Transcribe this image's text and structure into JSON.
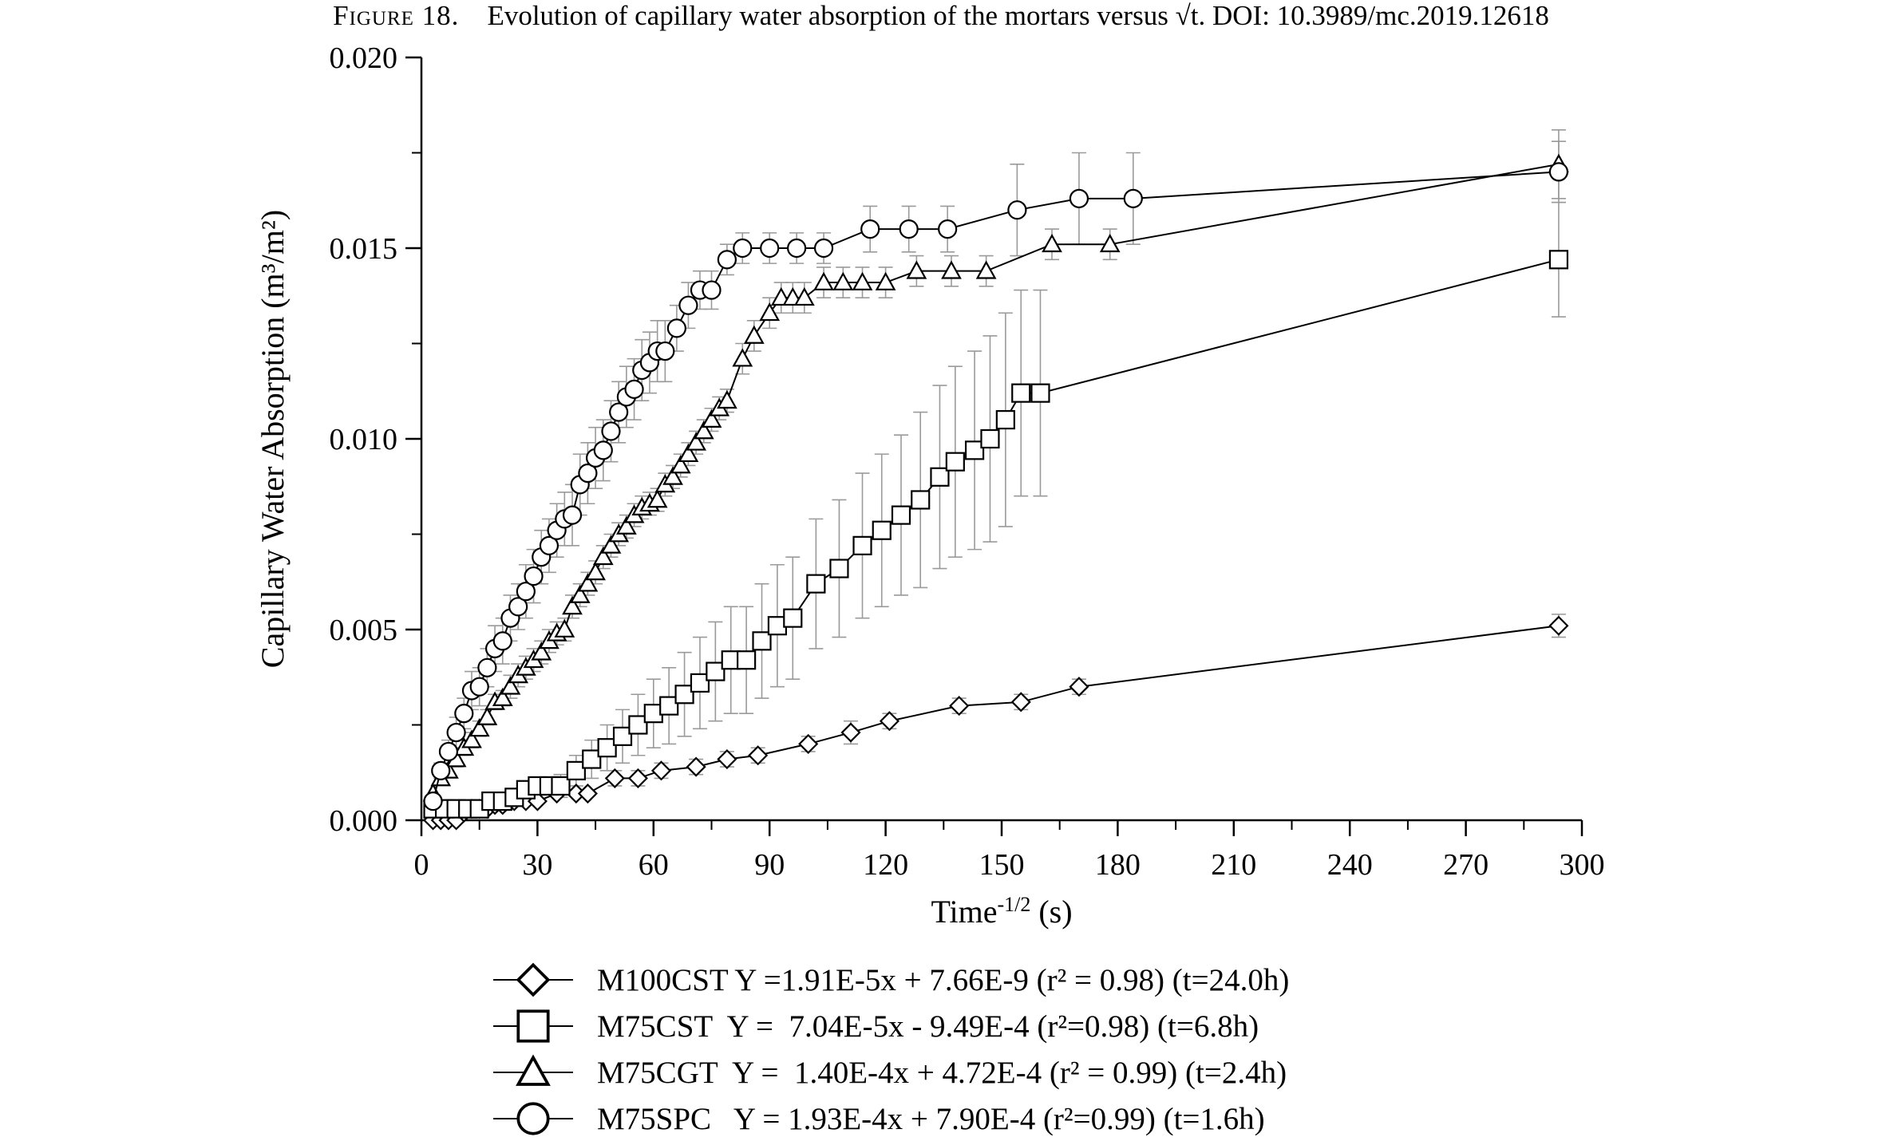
{
  "caption": {
    "label": "Figure 18.",
    "text": "Evolution of capillary water absorption of the mortars versus √t. DOI: 10.3989/mc.2019.12618"
  },
  "chart_data": {
    "type": "line",
    "xlabel": "Time",
    "xlabel_sup": "-1/2",
    "xlabel_unit": "(s)",
    "ylabel": "Capillary Water Absorption (m³/m²)",
    "xlim": [
      0,
      300
    ],
    "ylim": [
      0,
      0.02
    ],
    "x_ticks": [
      0,
      30,
      60,
      90,
      120,
      150,
      180,
      210,
      240,
      270,
      300
    ],
    "y_ticks": [
      "0.000",
      "0.005",
      "0.010",
      "0.015",
      "0.020"
    ],
    "grid": false,
    "legend_position": "bottom",
    "series": [
      {
        "name": "M100CST",
        "legend_text": "M100CST Y =1.91E-5x + 7.66E-9 (r² = 0.98) (t=24.0h)",
        "marker": "diamond",
        "x": [
          3,
          5,
          7,
          9,
          11,
          13,
          15,
          17,
          19,
          21,
          24,
          27,
          30,
          35,
          40,
          43,
          50,
          56,
          62,
          71,
          79,
          87,
          100,
          111,
          121,
          139,
          155,
          170,
          294
        ],
        "y": [
          0.0,
          0.0,
          0.0,
          0.0,
          0.0002,
          0.0003,
          0.0003,
          0.0003,
          0.0004,
          0.0004,
          0.0005,
          0.0005,
          0.0005,
          0.0007,
          0.0007,
          0.0007,
          0.0011,
          0.0011,
          0.0013,
          0.0014,
          0.0016,
          0.0017,
          0.002,
          0.0023,
          0.0026,
          0.003,
          0.0031,
          0.0035,
          0.0051
        ],
        "error": [
          0,
          0,
          0,
          0,
          0,
          0,
          0,
          0,
          0,
          0,
          0,
          0,
          0,
          0,
          0,
          0,
          0.0002,
          0.0002,
          0.0002,
          0.0002,
          0.0002,
          0.0002,
          0.0002,
          0.0003,
          0.0002,
          0.0002,
          0.0002,
          0.0002,
          0.0003
        ]
      },
      {
        "name": "M75CST",
        "legend_text": "M75CST  Y =  7.04E-5x - 9.49E-4 (r²=0.98) (t=6.8h)",
        "marker": "square",
        "x": [
          3,
          6,
          9,
          12,
          15,
          18,
          21,
          24,
          27,
          30,
          33,
          36,
          40,
          44,
          48,
          52,
          56,
          60,
          64,
          68,
          72,
          76,
          80,
          84,
          88,
          92,
          96,
          102,
          108,
          114,
          119,
          124,
          129,
          134,
          138,
          143,
          147,
          151,
          155,
          160,
          294
        ],
        "y": [
          0.0003,
          0.0003,
          0.0003,
          0.0003,
          0.0003,
          0.0005,
          0.0005,
          0.0006,
          0.0008,
          0.0009,
          0.0009,
          0.0009,
          0.0013,
          0.0016,
          0.0019,
          0.0022,
          0.0025,
          0.0028,
          0.003,
          0.0033,
          0.0036,
          0.0039,
          0.0042,
          0.0042,
          0.0047,
          0.0051,
          0.0053,
          0.0062,
          0.0066,
          0.0072,
          0.0076,
          0.008,
          0.0084,
          0.009,
          0.0094,
          0.0097,
          0.01,
          0.0105,
          0.0112,
          0.0112,
          0.0147
        ],
        "error": [
          0,
          0,
          0,
          0,
          0,
          0,
          0.0001,
          0.0002,
          0.0002,
          0.0002,
          0.0002,
          0.0003,
          0.0004,
          0.0005,
          0.0006,
          0.0007,
          0.0008,
          0.0009,
          0.001,
          0.0011,
          0.0012,
          0.0013,
          0.0014,
          0.0014,
          0.0015,
          0.0016,
          0.0016,
          0.0017,
          0.0018,
          0.0019,
          0.002,
          0.0021,
          0.0023,
          0.0024,
          0.0025,
          0.0026,
          0.0027,
          0.0028,
          0.0027,
          0.0027,
          0.0015
        ]
      },
      {
        "name": "M75CGT",
        "legend_text": "M75CGT  Y =  1.40E-4x + 4.72E-4 (r² = 0.99) (t=2.4h)",
        "marker": "triangle",
        "x": [
          3,
          5,
          7,
          9,
          11,
          13,
          15,
          17,
          19,
          21,
          23,
          25,
          27,
          29,
          31,
          33,
          35,
          37,
          39,
          41,
          43,
          45,
          47,
          49,
          51,
          53,
          55,
          57,
          59,
          61,
          63,
          65,
          67,
          69,
          71,
          73,
          75,
          77,
          79,
          83,
          86,
          90,
          93,
          96,
          99,
          104,
          109,
          114,
          120,
          128,
          137,
          146,
          163,
          178,
          294
        ],
        "y": [
          0.0007,
          0.0011,
          0.0013,
          0.0016,
          0.0019,
          0.0021,
          0.0024,
          0.0027,
          0.0031,
          0.0032,
          0.0035,
          0.0038,
          0.004,
          0.0042,
          0.0044,
          0.0047,
          0.0049,
          0.005,
          0.0056,
          0.0059,
          0.0062,
          0.0065,
          0.0069,
          0.0072,
          0.0075,
          0.0077,
          0.008,
          0.0082,
          0.0083,
          0.0084,
          0.0088,
          0.009,
          0.0093,
          0.0096,
          0.0099,
          0.0102,
          0.0105,
          0.0108,
          0.011,
          0.0121,
          0.0127,
          0.0133,
          0.0137,
          0.0137,
          0.0137,
          0.0141,
          0.0141,
          0.0141,
          0.0141,
          0.0144,
          0.0144,
          0.0144,
          0.0151,
          0.0151,
          0.0172
        ],
        "error": [
          0,
          0.0001,
          0.0001,
          0.0002,
          0.0002,
          0.0002,
          0.0002,
          0.0002,
          0.0002,
          0.0002,
          0.0003,
          0.0003,
          0.0003,
          0.0003,
          0.0003,
          0.0003,
          0.0003,
          0.0003,
          0.0003,
          0.0003,
          0.0003,
          0.0003,
          0.0003,
          0.0003,
          0.0003,
          0.0003,
          0.0003,
          0.0003,
          0.0003,
          0.0003,
          0.0003,
          0.0003,
          0.0003,
          0.0003,
          0.0003,
          0.0003,
          0.0003,
          0.0003,
          0.0003,
          0.0004,
          0.0004,
          0.0004,
          0.0004,
          0.0004,
          0.0004,
          0.0004,
          0.0004,
          0.0004,
          0.0004,
          0.0004,
          0.0004,
          0.0004,
          0.0004,
          0.0004,
          0.0009
        ]
      },
      {
        "name": "M75SPC",
        "legend_text": "M75SPC   Y = 1.93E-4x + 7.90E-4 (r²=0.99) (t=1.6h)",
        "marker": "circle",
        "x": [
          3,
          5,
          7,
          9,
          11,
          13,
          15,
          17,
          19,
          21,
          23,
          25,
          27,
          29,
          31,
          33,
          35,
          37,
          39,
          41,
          43,
          45,
          47,
          49,
          51,
          53,
          55,
          57,
          59,
          61,
          63,
          66,
          69,
          72,
          75,
          79,
          83,
          90,
          97,
          104,
          116,
          126,
          136,
          154,
          170,
          184,
          294
        ],
        "y": [
          0.0005,
          0.0013,
          0.0018,
          0.0023,
          0.0028,
          0.0034,
          0.0035,
          0.004,
          0.0045,
          0.0047,
          0.0053,
          0.0056,
          0.006,
          0.0064,
          0.0069,
          0.0072,
          0.0076,
          0.0079,
          0.008,
          0.0088,
          0.0091,
          0.0095,
          0.0097,
          0.0102,
          0.0107,
          0.0111,
          0.0113,
          0.0118,
          0.012,
          0.0123,
          0.0123,
          0.0129,
          0.0135,
          0.0139,
          0.0139,
          0.0147,
          0.015,
          0.015,
          0.015,
          0.015,
          0.0155,
          0.0155,
          0.0155,
          0.016,
          0.0163,
          0.0163,
          0.017
        ],
        "error": [
          0.0001,
          0.0002,
          0.0003,
          0.0004,
          0.0004,
          0.0005,
          0.0005,
          0.0005,
          0.0006,
          0.0006,
          0.0006,
          0.0006,
          0.0007,
          0.0007,
          0.0007,
          0.0007,
          0.0007,
          0.0007,
          0.0008,
          0.0008,
          0.0008,
          0.0008,
          0.0008,
          0.0008,
          0.0008,
          0.0008,
          0.0008,
          0.0008,
          0.0008,
          0.0008,
          0.0008,
          0.0006,
          0.0006,
          0.0005,
          0.0005,
          0.0004,
          0.0004,
          0.0004,
          0.0004,
          0.0004,
          0.0006,
          0.0006,
          0.0006,
          0.0012,
          0.0012,
          0.0012,
          0.0008
        ]
      }
    ]
  }
}
